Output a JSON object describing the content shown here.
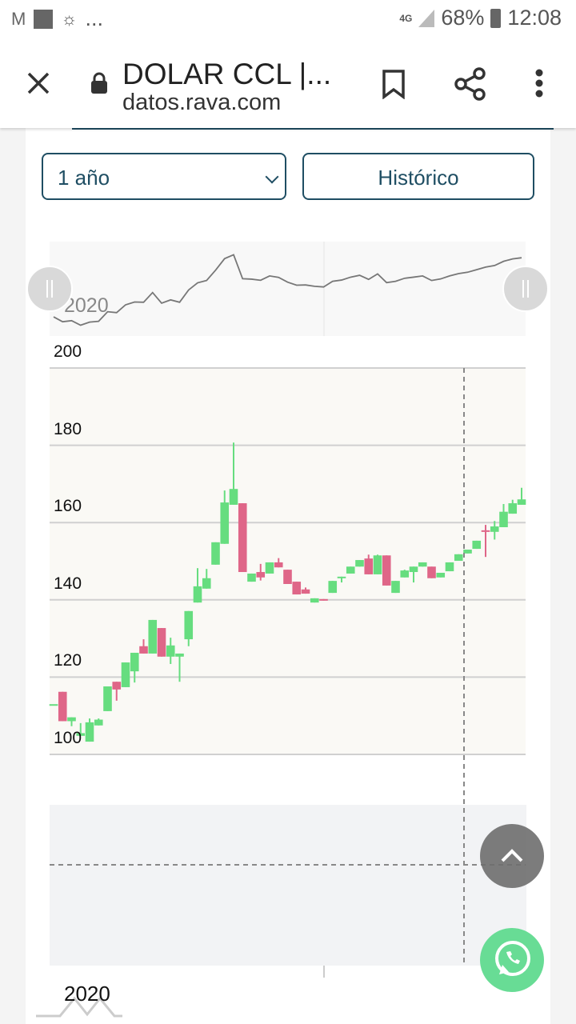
{
  "status_bar": {
    "battery": "68%",
    "time": "12:08",
    "network": "4G",
    "more": "..."
  },
  "browser": {
    "title": "DOLAR CCL |...",
    "url": "datos.rava.com"
  },
  "controls": {
    "period_select": "1 año",
    "historic_button": "Histórico"
  },
  "colors": {
    "accent": "#1f4e63",
    "up": "#66dd7f",
    "down": "#df6688",
    "whatsapp": "#68dc95"
  },
  "chart_data": {
    "type": "candlestick",
    "navigator_label": "2020",
    "x_axis_label": "2020",
    "ylim": [
      100,
      200
    ],
    "yticks": [
      "100",
      "120",
      "140",
      "160",
      "180",
      "200"
    ],
    "grid": true,
    "ohlc": [
      [
        113,
        113,
        113,
        113
      ],
      [
        116.2,
        116.2,
        108.6,
        108.6
      ],
      [
        108.6,
        109.6,
        107.3,
        109.6
      ],
      [
        104.8,
        108.1,
        104.8,
        105.5
      ],
      [
        103.3,
        109.3,
        103.3,
        108.3
      ],
      [
        107.5,
        109.3,
        107.5,
        109
      ],
      [
        111.2,
        117.6,
        111.2,
        117.6
      ],
      [
        118.8,
        118.8,
        113.9,
        116.8
      ],
      [
        117.4,
        123.8,
        117.4,
        123.8
      ],
      [
        121.5,
        126.3,
        118.6,
        126.3
      ],
      [
        128,
        129.8,
        126.1,
        126.1
      ],
      [
        126.1,
        134.8,
        126.1,
        134.8
      ],
      [
        132.7,
        132.7,
        125.3,
        125.3
      ],
      [
        125.3,
        130.2,
        123.4,
        128.2
      ],
      [
        125.3,
        126.1,
        118.8,
        126.1
      ],
      [
        129.8,
        137.1,
        128,
        137.1
      ],
      [
        139.3,
        148.2,
        139.3,
        143.5
      ],
      [
        142.9,
        148,
        142.9,
        145.6
      ],
      [
        149.1,
        154.9,
        149.1,
        154.9
      ],
      [
        154.5,
        168.3,
        154.5,
        165.2
      ],
      [
        164.6,
        180.7,
        164.6,
        168.7
      ],
      [
        165,
        165,
        147.2,
        147.2
      ],
      [
        144.7,
        146.8,
        144.7,
        146.8
      ],
      [
        147.2,
        149.3,
        145,
        145.8
      ],
      [
        146.8,
        149.7,
        146.8,
        149.7
      ],
      [
        149.7,
        150.8,
        148.4,
        148.4
      ],
      [
        147.8,
        147.8,
        144.1,
        144.1
      ],
      [
        144.7,
        144.7,
        141.4,
        141.4
      ],
      [
        142.7,
        143.2,
        141.6,
        141.6
      ],
      [
        139.3,
        140.4,
        139.3,
        140.4
      ],
      [
        140.2,
        140.2,
        139.8,
        139.8
      ],
      [
        141.8,
        144.9,
        141.8,
        144.9
      ],
      [
        145.6,
        146,
        144.5,
        146
      ],
      [
        146.8,
        148.6,
        146.8,
        148.6
      ],
      [
        148.6,
        150.3,
        148.6,
        150.3
      ],
      [
        150.7,
        151.7,
        146.6,
        146.6
      ],
      [
        146.6,
        151.7,
        146.6,
        151.5
      ],
      [
        151.5,
        151.5,
        143.7,
        143.7
      ],
      [
        141.8,
        144.9,
        141.8,
        144.9
      ],
      [
        145.8,
        147.8,
        145.8,
        147.6
      ],
      [
        147.2,
        148.6,
        144.5,
        148.6
      ],
      [
        148.6,
        149.7,
        148.6,
        149.7
      ],
      [
        148.6,
        148.6,
        145.6,
        145.6
      ],
      [
        145.8,
        147,
        145.8,
        147
      ],
      [
        147.4,
        149.7,
        147.4,
        149.7
      ],
      [
        150.1,
        151.8,
        150.1,
        151.8
      ],
      [
        152,
        153,
        152,
        153
      ],
      [
        153.2,
        155.3,
        153.2,
        155.3
      ],
      [
        158,
        159.4,
        151.1,
        157.6
      ],
      [
        157.6,
        160.4,
        155.6,
        159
      ],
      [
        158.8,
        164.8,
        158.8,
        162.8
      ],
      [
        162.3,
        165.9,
        162.3,
        165
      ],
      [
        164.6,
        169,
        164.6,
        166
      ]
    ]
  }
}
